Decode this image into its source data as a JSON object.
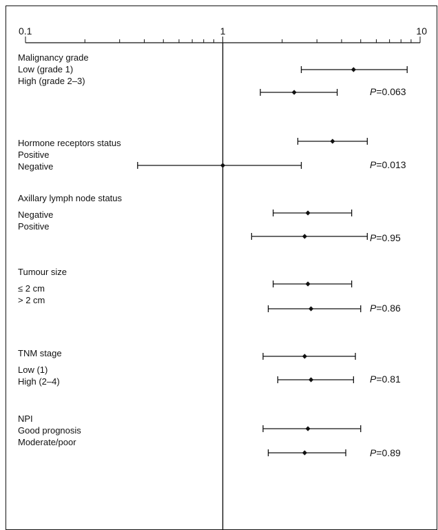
{
  "chart_data": {
    "type": "forest",
    "x_axis": {
      "scale": "log",
      "range": [
        0.1,
        10
      ],
      "tick_labels": [
        "0.1",
        "1",
        "10"
      ],
      "reference_line": 1
    },
    "groups": [
      {
        "title": "Malignancy grade",
        "rows": [
          {
            "label": "Low (grade 1)",
            "estimate": 4.6,
            "lower": 2.5,
            "upper": 8.6
          },
          {
            "label": "High (grade 2–3)",
            "estimate": 2.3,
            "lower": 1.55,
            "upper": 3.8
          }
        ],
        "p_text": "=0.063"
      },
      {
        "title": "Hormone receptors status",
        "rows": [
          {
            "label": "Positive",
            "estimate": 3.6,
            "lower": 2.4,
            "upper": 5.4
          },
          {
            "label": "Negative",
            "estimate": 1.0,
            "lower": 0.37,
            "upper": 2.5
          }
        ],
        "p_text": "=0.013"
      },
      {
        "title": "Axillary lymph node status",
        "rows": [
          {
            "label": "Negative",
            "estimate": 2.7,
            "lower": 1.8,
            "upper": 4.5
          },
          {
            "label": "Positive",
            "estimate": 2.6,
            "lower": 1.4,
            "upper": 5.4
          }
        ],
        "p_text": "=0.95"
      },
      {
        "title": "Tumour size",
        "rows": [
          {
            "label": "≤ 2 cm",
            "estimate": 2.7,
            "lower": 1.8,
            "upper": 4.5
          },
          {
            "label": "> 2 cm",
            "estimate": 2.8,
            "lower": 1.7,
            "upper": 5.0
          }
        ],
        "p_text": "=0.86"
      },
      {
        "title": "TNM stage",
        "rows": [
          {
            "label": "Low (1)",
            "estimate": 2.6,
            "lower": 1.6,
            "upper": 4.7
          },
          {
            "label": "High (2–4)",
            "estimate": 2.8,
            "lower": 1.9,
            "upper": 4.6
          }
        ],
        "p_text": "=0.81"
      },
      {
        "title": "NPI",
        "rows": [
          {
            "label": "Good prognosis",
            "estimate": 2.7,
            "lower": 1.6,
            "upper": 5.0
          },
          {
            "label": "Moderate/poor",
            "estimate": 2.6,
            "lower": 1.7,
            "upper": 4.2
          }
        ],
        "p_text": "=0.89"
      }
    ],
    "p_symbol": "P",
    "line_color": "#111111"
  }
}
